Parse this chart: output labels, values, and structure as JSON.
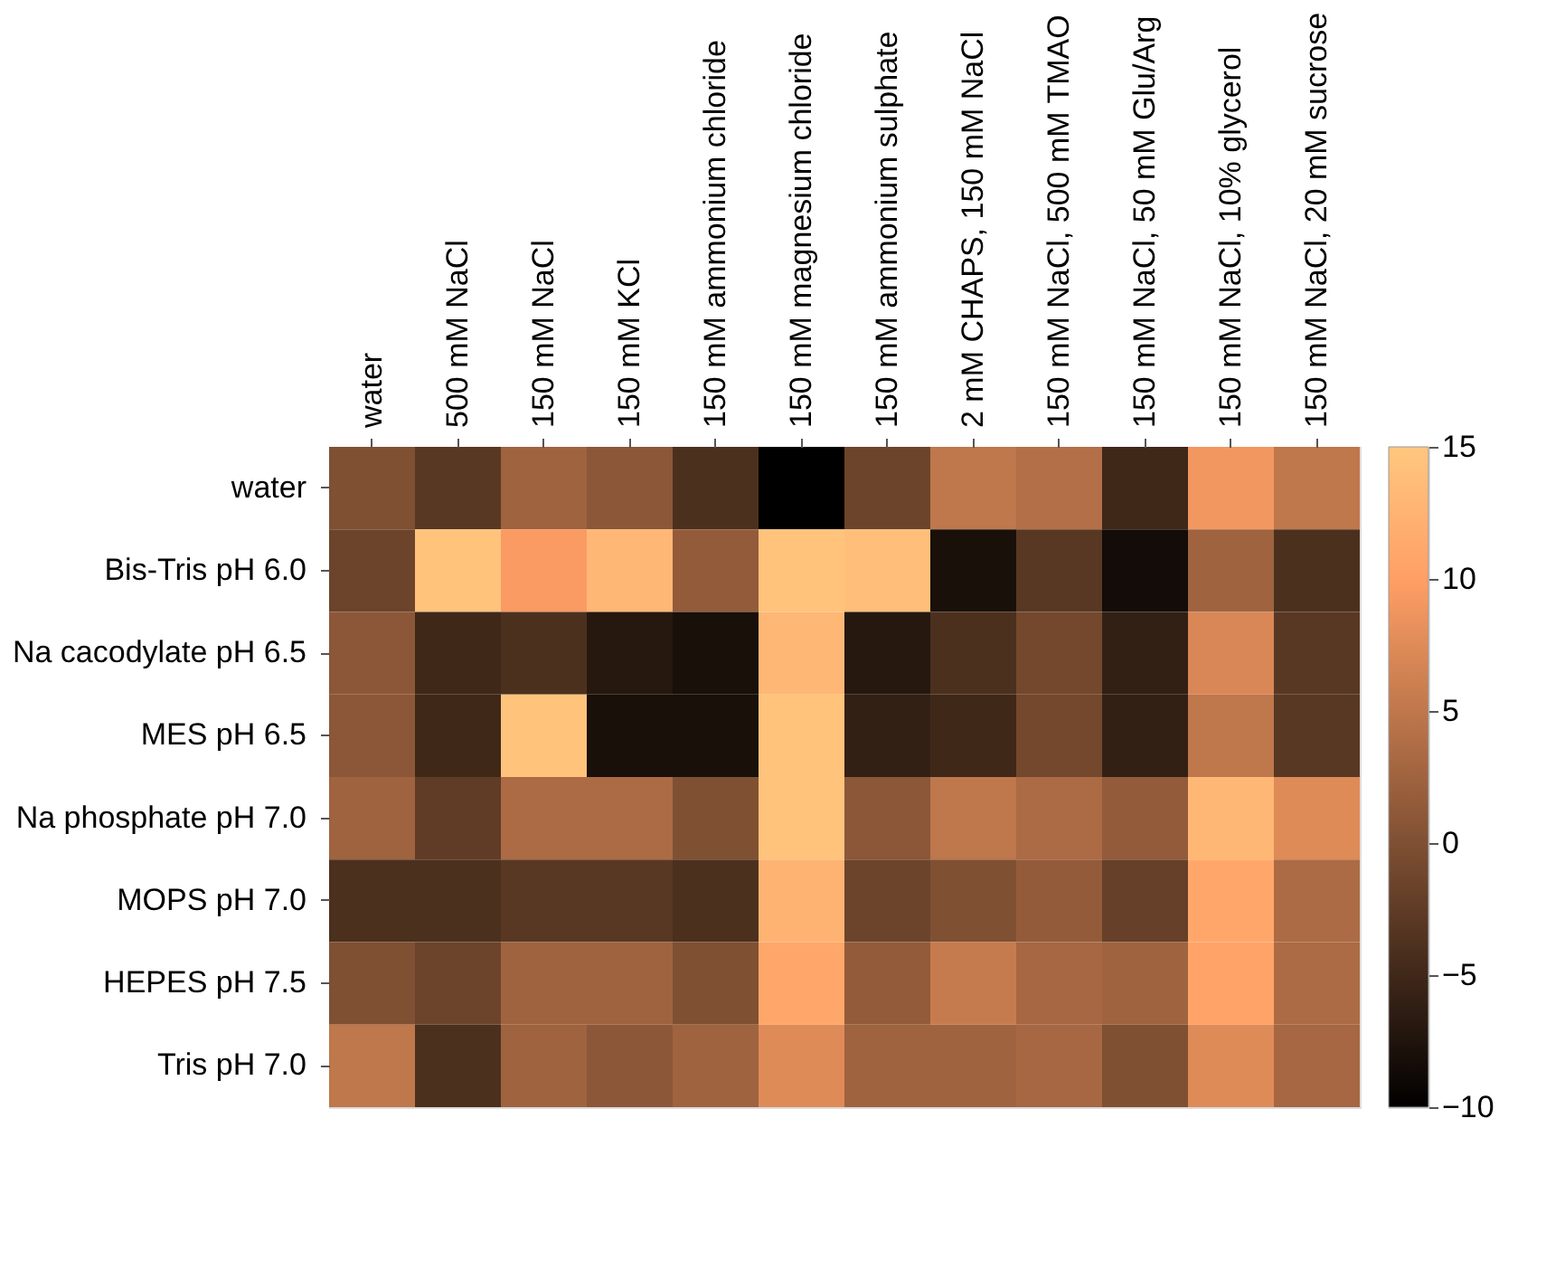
{
  "chart_data": {
    "type": "heatmap",
    "categories": [
      "water",
      "500 mM NaCl",
      "150 mM NaCl",
      "150 mM KCl",
      "150 mM ammonium chloride",
      "150 mM magnesium chloride",
      "150 mM ammonium sulphate",
      "2 mM CHAPS, 150 mM NaCl",
      "150 mM NaCl, 500 mM TMAO",
      "150 mM NaCl, 50 mM Glu/Arg",
      "150 mM NaCl, 10% glycerol",
      "150 mM NaCl, 20 mM sucrose"
    ],
    "y_categories": [
      "water",
      "Bis-Tris pH 6.0",
      "Na cacodylate pH 6.5",
      "MES pH 6.5",
      "Na phosphate pH 7.0",
      "MOPS pH 7.0",
      "HEPES pH 7.5",
      "Tris pH 7.0"
    ],
    "cells": [
      [
        0,
        -3,
        2.5,
        1,
        -4,
        -10,
        -1.5,
        5,
        4,
        -5,
        9,
        5
      ],
      [
        -1.5,
        14.5,
        9.5,
        13,
        1.5,
        14.5,
        14,
        -8,
        -3,
        -8.5,
        2.5,
        -4
      ],
      [
        1,
        -5,
        -4,
        -7,
        -8,
        13,
        -7,
        -4,
        -1,
        -6,
        7,
        -3
      ],
      [
        1,
        -5,
        14.5,
        -8,
        -8,
        14.5,
        -6,
        -5,
        -1,
        -6,
        5,
        -3
      ],
      [
        2.5,
        -2.5,
        3.5,
        3.5,
        0,
        14.5,
        1,
        5,
        3.5,
        1.5,
        13,
        7.5
      ],
      [
        -4,
        -4,
        -3,
        -3,
        -4,
        12.5,
        -1.5,
        0,
        1.5,
        -2,
        11,
        3.5
      ],
      [
        0,
        -1.5,
        2.5,
        2.5,
        0,
        11,
        1.5,
        5.5,
        3,
        2.5,
        10.5,
        3.5
      ],
      [
        5,
        -4,
        2.5,
        1,
        2.5,
        7.5,
        2.5,
        2.5,
        3,
        0,
        7.5,
        3
      ]
    ],
    "clim": [
      -10,
      15
    ],
    "cticks": [
      -10,
      -5,
      0,
      5,
      10,
      15
    ]
  }
}
